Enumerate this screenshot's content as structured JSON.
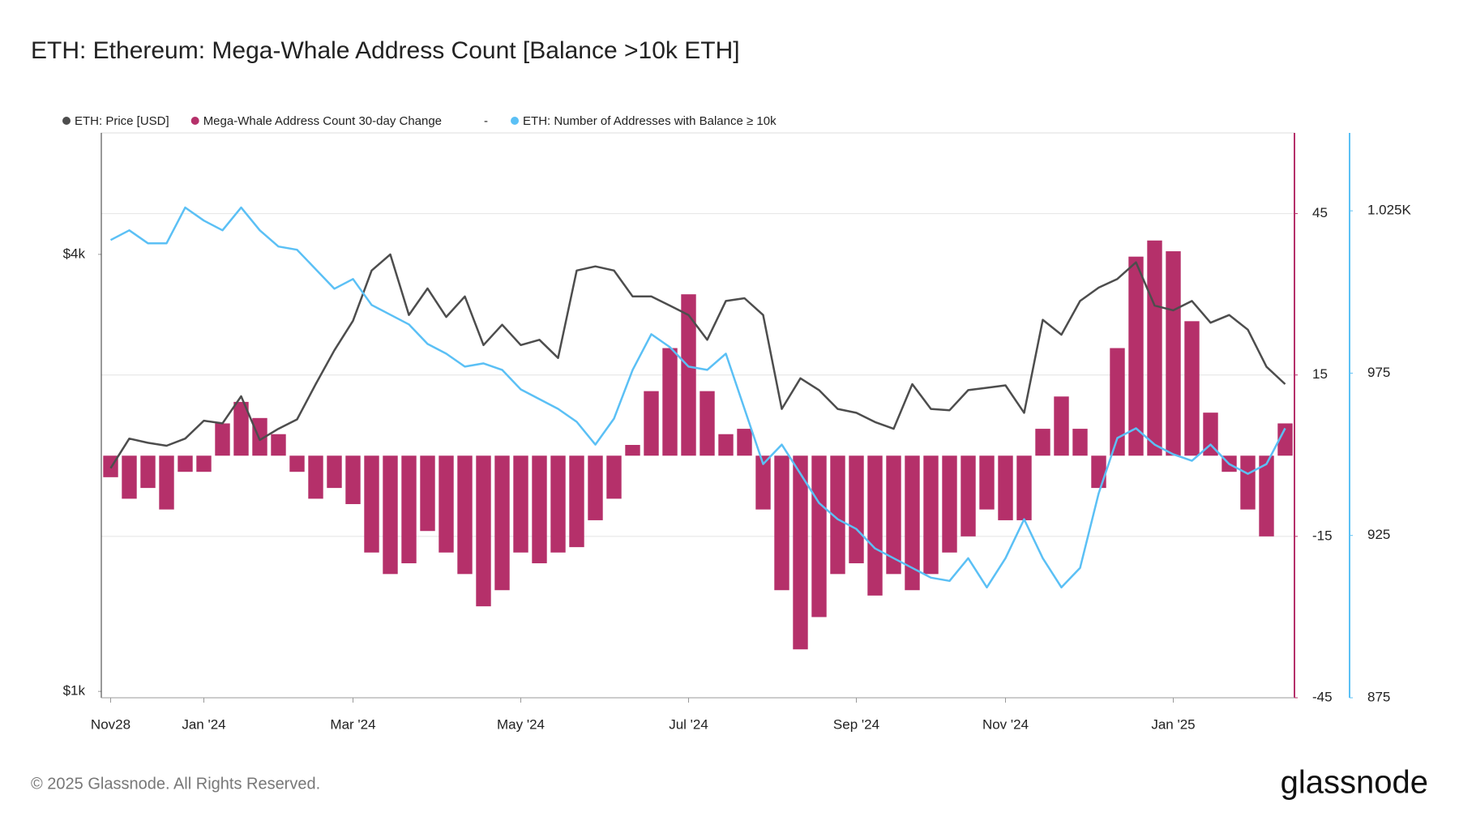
{
  "chart_data": {
    "type": "combo",
    "title": "ETH: Ethereum: Mega-Whale Address Count [Balance >10k ETH]",
    "legend_note": "-",
    "categories": [
      "Nov28",
      null,
      null,
      null,
      null,
      "Jan '24",
      null,
      null,
      null,
      null,
      null,
      null,
      null,
      "Mar '24",
      null,
      null,
      null,
      null,
      null,
      null,
      null,
      null,
      "May '24",
      null,
      null,
      null,
      null,
      null,
      null,
      null,
      null,
      "Jul '24",
      null,
      null,
      null,
      null,
      null,
      null,
      null,
      null,
      "Sep '24",
      null,
      null,
      null,
      null,
      null,
      null,
      null,
      "Nov '24",
      null,
      null,
      null,
      null,
      null,
      null,
      null,
      null,
      "Jan '25",
      null,
      null,
      null,
      null,
      null,
      null
    ],
    "ylog": true,
    "ylim": [
      980,
      5880
    ],
    "yticks": [
      {
        "value": 1000,
        "label": "$1k"
      },
      {
        "value": 4000,
        "label": "$4k"
      }
    ],
    "y2lim": [
      -45,
      60
    ],
    "y2ticks": [
      -45,
      -15,
      15,
      45
    ],
    "y3lim": [
      875,
      1049
    ],
    "y3ticks": [
      875,
      925,
      975,
      {
        "value": 1025,
        "label": "1.025K"
      }
    ],
    "grid": true,
    "series": [
      {
        "name": "ETH: Price [USD]",
        "type": "line",
        "axis": "y",
        "color": "#4d4d4d",
        "values": [
          2030,
          2230,
          2200,
          2180,
          2230,
          2360,
          2340,
          2550,
          2220,
          2300,
          2370,
          2650,
          2950,
          3240,
          3800,
          4000,
          3300,
          3590,
          3280,
          3500,
          3000,
          3200,
          3000,
          3050,
          2880,
          3800,
          3850,
          3800,
          3500,
          3500,
          3400,
          3300,
          3050,
          3450,
          3480,
          3300,
          2450,
          2700,
          2600,
          2450,
          2420,
          2350,
          2300,
          2650,
          2450,
          2440,
          2600,
          2620,
          2640,
          2420,
          3250,
          3100,
          3450,
          3600,
          3700,
          3900,
          3400,
          3350,
          3450,
          3220,
          3300,
          3150,
          2800,
          2650
        ]
      },
      {
        "name": "Mega-Whale Address Count 30-day Change",
        "type": "bar",
        "axis": "y2",
        "color": "#b5306a",
        "values": [
          -4,
          -8,
          -6,
          -10,
          -3,
          -3,
          6,
          10,
          7,
          4,
          -3,
          -8,
          -6,
          -9,
          -18,
          -22,
          -20,
          -14,
          -18,
          -22,
          -28,
          -25,
          -18,
          -20,
          -18,
          -17,
          -12,
          -8,
          2,
          12,
          20,
          30,
          12,
          4,
          5,
          -10,
          -25,
          -36,
          -30,
          -22,
          -20,
          -26,
          -22,
          -25,
          -22,
          -18,
          -15,
          -10,
          -12,
          -12,
          5,
          11,
          5,
          -6,
          20,
          37,
          40,
          38,
          25,
          8,
          -3,
          -10,
          -15,
          6
        ]
      },
      {
        "name": "ETH: Number of Addresses with Balance ≥ 10k",
        "type": "line",
        "axis": "y3",
        "color": "#5bc0f5",
        "values": [
          1016,
          1019,
          1015,
          1015,
          1026,
          1022,
          1019,
          1026,
          1019,
          1014,
          1013,
          1007,
          1001,
          1004,
          996,
          993,
          990,
          984,
          981,
          977,
          978,
          976,
          970,
          967,
          964,
          960,
          953,
          961,
          976,
          987,
          983,
          977,
          976,
          981,
          964,
          947,
          953,
          944,
          935,
          930,
          927,
          921,
          918,
          915,
          912,
          911,
          918,
          909,
          918,
          930,
          918,
          909,
          915,
          938,
          955,
          958,
          953,
          950,
          948,
          953,
          947,
          944,
          947,
          958
        ]
      }
    ]
  },
  "footer": {
    "copyright": "© 2025 Glassnode. All Rights Reserved.",
    "logo": "glassnode"
  }
}
